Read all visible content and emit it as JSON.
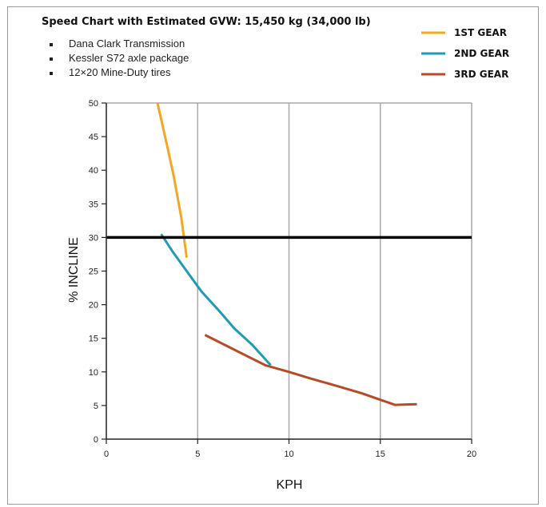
{
  "chart_data": {
    "type": "line",
    "title": "Speed Chart with Estimated GVW: 15,450 kg (34,000 lb)",
    "notes": [
      "Dana Clark Transmission",
      "Kessler S72 axle package",
      "12×20 Mine-Duty tires"
    ],
    "xlabel": "KPH",
    "ylabel": "% INCLINE",
    "xlim": [
      0,
      20
    ],
    "ylim": [
      0,
      50
    ],
    "xticks": [
      0,
      5,
      10,
      15,
      20
    ],
    "yticks": [
      0,
      5,
      10,
      15,
      20,
      25,
      30,
      35,
      40,
      45,
      50
    ],
    "grid": true,
    "legend_position": "top-right",
    "reference_line": {
      "y": 30,
      "color": "#000000"
    },
    "series": [
      {
        "name": "1ST GEAR",
        "color": "#f5a623",
        "x": [
          2.8,
          3.3,
          3.7,
          4.1,
          4.4
        ],
        "y": [
          50,
          44,
          39,
          33,
          27
        ]
      },
      {
        "name": "2ND GEAR",
        "color": "#1f9bb5",
        "x": [
          3.0,
          3.6,
          4.4,
          5.2,
          6.2,
          7.0,
          8.0,
          9.0
        ],
        "y": [
          30.5,
          28,
          25,
          22,
          19,
          16.5,
          14,
          11
        ]
      },
      {
        "name": "3RD GEAR",
        "color": "#b84a26",
        "x": [
          5.4,
          6.5,
          7.6,
          8.7,
          10.0,
          11.2,
          12.5,
          14.0,
          15.8,
          17.0
        ],
        "y": [
          15.5,
          14,
          12.5,
          11,
          10,
          9,
          8,
          6.8,
          5.1,
          5.2
        ]
      }
    ]
  }
}
